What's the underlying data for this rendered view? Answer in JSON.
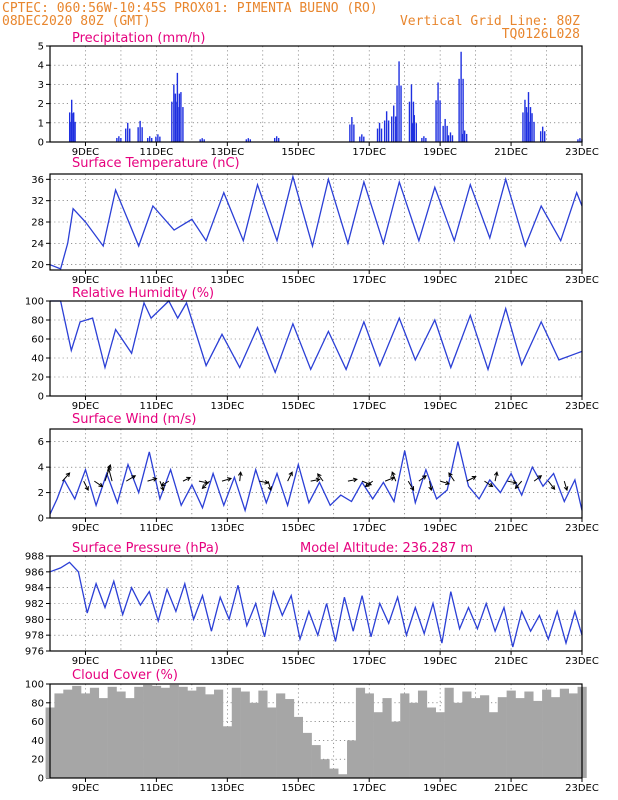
{
  "header": {
    "line1_left": "CPTEC:  060:56W-10:45S  PROX01: PIMENTA BUENO (RO)",
    "line2_left": "08DEC2020 80Z (GMT)",
    "line2_right": "Vertical Grid Line: 80Z",
    "line3_right": "TQ0126L028"
  },
  "colors": {
    "header": "#e8862e",
    "title": "#e6007e",
    "series_line": "#2b3fd6",
    "precip_bar": "#1e2fe0",
    "cloud_fill": "#a6a6a6"
  },
  "chart_data": [
    {
      "type": "bar",
      "title": "Precipitation (mm/h)",
      "ylim": [
        0,
        5
      ],
      "yticks": [
        0,
        1,
        2,
        3,
        4,
        5
      ],
      "x_date_ticks": [
        "9DEC",
        "11DEC",
        "13DEC",
        "15DEC",
        "17DEC",
        "19DEC",
        "21DEC",
        "23DEC"
      ],
      "events": [
        {
          "day": 8.62,
          "value": 2.2
        },
        {
          "day": 8.66,
          "value": 1.5
        },
        {
          "day": 9.95,
          "value": 0.3
        },
        {
          "day": 10.2,
          "value": 1.0
        },
        {
          "day": 10.55,
          "value": 1.1
        },
        {
          "day": 10.82,
          "value": 0.3
        },
        {
          "day": 11.05,
          "value": 0.4
        },
        {
          "day": 11.5,
          "value": 3.0
        },
        {
          "day": 11.6,
          "value": 3.6
        },
        {
          "day": 11.7,
          "value": 2.6
        },
        {
          "day": 12.3,
          "value": 0.2
        },
        {
          "day": 13.6,
          "value": 0.2
        },
        {
          "day": 14.4,
          "value": 0.3
        },
        {
          "day": 16.52,
          "value": 1.3
        },
        {
          "day": 16.8,
          "value": 0.4
        },
        {
          "day": 17.3,
          "value": 1.0
        },
        {
          "day": 17.5,
          "value": 1.6
        },
        {
          "day": 17.7,
          "value": 1.9
        },
        {
          "day": 17.85,
          "value": 4.2
        },
        {
          "day": 18.2,
          "value": 3.0
        },
        {
          "day": 18.28,
          "value": 1.4
        },
        {
          "day": 18.55,
          "value": 0.3
        },
        {
          "day": 18.95,
          "value": 3.1
        },
        {
          "day": 19.15,
          "value": 1.2
        },
        {
          "day": 19.3,
          "value": 0.5
        },
        {
          "day": 19.6,
          "value": 4.7
        },
        {
          "day": 19.7,
          "value": 0.6
        },
        {
          "day": 21.4,
          "value": 2.2
        },
        {
          "day": 21.5,
          "value": 2.6
        },
        {
          "day": 21.6,
          "value": 1.5
        },
        {
          "day": 21.9,
          "value": 0.8
        },
        {
          "day": 22.95,
          "value": 0.2
        }
      ]
    },
    {
      "type": "line",
      "title": "Surface Temperature (nC)",
      "ylim": [
        19,
        37
      ],
      "yticks": [
        20,
        24,
        28,
        32,
        36
      ],
      "x_date_ticks": [
        "9DEC",
        "11DEC",
        "13DEC",
        "15DEC",
        "17DEC",
        "19DEC",
        "21DEC",
        "23DEC"
      ],
      "series": [
        {
          "x": [
            8.0,
            8.3,
            8.5,
            8.65,
            9.0,
            9.5,
            9.85,
            10.5,
            10.9,
            11.5,
            12.0,
            12.4,
            12.9,
            13.45,
            13.85,
            14.4,
            14.85,
            15.4,
            15.85,
            16.4,
            16.85,
            17.4,
            17.85,
            18.4,
            18.85,
            19.4,
            19.85,
            20.4,
            20.85,
            21.4,
            21.85,
            22.4,
            22.85,
            23.0
          ],
          "y": [
            20.0,
            19.2,
            24.0,
            30.5,
            28.0,
            23.5,
            34.0,
            23.5,
            31.0,
            26.5,
            28.5,
            24.5,
            33.5,
            24.5,
            35.0,
            24.5,
            36.5,
            23.5,
            36.0,
            24.0,
            35.5,
            24.0,
            35.5,
            24.5,
            34.5,
            24.5,
            35.0,
            25.0,
            36.0,
            23.5,
            31.0,
            24.5,
            33.5,
            31.0
          ]
        }
      ]
    },
    {
      "type": "line",
      "title": "Relative Humidity (%)",
      "ylim": [
        0,
        100
      ],
      "yticks": [
        0,
        20,
        40,
        60,
        80,
        100
      ],
      "x_date_ticks": [
        "9DEC",
        "11DEC",
        "13DEC",
        "15DEC",
        "17DEC",
        "19DEC",
        "21DEC",
        "23DEC"
      ],
      "series": [
        {
          "x": [
            8.0,
            8.3,
            8.6,
            8.85,
            9.2,
            9.55,
            9.85,
            10.3,
            10.65,
            10.85,
            11.35,
            11.6,
            11.85,
            12.4,
            12.85,
            13.35,
            13.85,
            14.35,
            14.85,
            15.35,
            15.85,
            16.35,
            16.85,
            17.3,
            17.85,
            18.3,
            18.85,
            19.3,
            19.85,
            20.35,
            20.85,
            21.3,
            21.85,
            22.35,
            22.85,
            23.0
          ],
          "y": [
            100,
            100,
            48,
            78,
            82,
            30,
            70,
            45,
            98,
            82,
            100,
            82,
            98,
            32,
            65,
            30,
            72,
            25,
            76,
            28,
            68,
            28,
            78,
            32,
            82,
            38,
            80,
            30,
            85,
            28,
            92,
            33,
            78,
            38,
            45,
            47
          ]
        }
      ]
    },
    {
      "type": "line",
      "title": "Surface Wind (m/s)",
      "ylim": [
        0,
        7
      ],
      "yticks": [
        0,
        2,
        4,
        6
      ],
      "x_date_ticks": [
        "9DEC",
        "11DEC",
        "13DEC",
        "15DEC",
        "17DEC",
        "19DEC",
        "21DEC",
        "23DEC"
      ],
      "series": [
        {
          "x": [
            8.0,
            8.2,
            8.4,
            8.7,
            9.0,
            9.3,
            9.6,
            9.9,
            10.2,
            10.5,
            10.8,
            11.1,
            11.4,
            11.7,
            12.0,
            12.3,
            12.6,
            12.9,
            13.2,
            13.5,
            13.8,
            14.1,
            14.4,
            14.7,
            15.0,
            15.3,
            15.6,
            15.9,
            16.2,
            16.5,
            16.8,
            17.1,
            17.4,
            17.7,
            18.0,
            18.3,
            18.6,
            18.9,
            19.2,
            19.5,
            19.8,
            20.1,
            20.4,
            20.7,
            21.0,
            21.3,
            21.6,
            21.9,
            22.2,
            22.5,
            22.8,
            23.0
          ],
          "y": [
            0.3,
            1.5,
            3.0,
            1.5,
            3.8,
            1.0,
            3.5,
            1.2,
            4.2,
            2.0,
            5.2,
            1.5,
            3.8,
            1.0,
            2.6,
            0.8,
            3.5,
            1.0,
            3.2,
            0.6,
            3.8,
            1.2,
            3.5,
            1.0,
            4.2,
            1.2,
            2.8,
            1.0,
            1.8,
            1.3,
            2.8,
            1.5,
            2.8,
            1.3,
            5.3,
            1.2,
            3.8,
            1.5,
            2.2,
            6.0,
            2.5,
            1.5,
            3.0,
            2.0,
            3.5,
            1.8,
            4.0,
            2.5,
            3.5,
            1.3,
            3.0,
            0.6
          ]
        }
      ],
      "vectors": [
        {
          "day": 8.35,
          "u": 0.8,
          "v": 0.9
        },
        {
          "day": 8.95,
          "u": 0.5,
          "v": -1.0
        },
        {
          "day": 9.25,
          "u": 0.9,
          "v": -0.6
        },
        {
          "day": 9.55,
          "u": 0.6,
          "v": 1.8
        },
        {
          "day": 9.75,
          "u": -0.4,
          "v": 1.5
        },
        {
          "day": 10.15,
          "u": 1.0,
          "v": 0.6
        },
        {
          "day": 10.75,
          "u": 1.0,
          "v": 0.3
        },
        {
          "day": 11.1,
          "u": 0.4,
          "v": -1.0
        },
        {
          "day": 11.35,
          "u": -0.8,
          "v": -0.5
        },
        {
          "day": 11.75,
          "u": 0.8,
          "v": 0.4
        },
        {
          "day": 12.2,
          "u": 1.0,
          "v": -0.2
        },
        {
          "day": 12.5,
          "u": -0.8,
          "v": -0.8
        },
        {
          "day": 12.85,
          "u": 1.0,
          "v": 0.3
        },
        {
          "day": 13.35,
          "u": 0.1,
          "v": 1.0
        },
        {
          "day": 13.9,
          "u": 1.0,
          "v": -0.2
        },
        {
          "day": 14.15,
          "u": 0.3,
          "v": -1.0
        },
        {
          "day": 14.7,
          "u": 0.5,
          "v": 1.0
        },
        {
          "day": 15.35,
          "u": 1.0,
          "v": 0.2
        },
        {
          "day": 15.7,
          "u": -0.6,
          "v": 0.8
        },
        {
          "day": 16.4,
          "u": 1.0,
          "v": 0.2
        },
        {
          "day": 16.8,
          "u": 1.0,
          "v": -0.4
        },
        {
          "day": 17.1,
          "u": -0.8,
          "v": -0.6
        },
        {
          "day": 17.45,
          "u": 1.0,
          "v": 0.4
        },
        {
          "day": 17.75,
          "u": -0.4,
          "v": 1.0
        },
        {
          "day": 18.1,
          "u": 0.6,
          "v": -1.0
        },
        {
          "day": 18.4,
          "u": 0.8,
          "v": 0.6
        },
        {
          "day": 18.7,
          "u": 0.2,
          "v": -1.0
        },
        {
          "day": 19.0,
          "u": 1.0,
          "v": -0.3
        },
        {
          "day": 19.4,
          "u": -0.6,
          "v": 0.9
        },
        {
          "day": 19.75,
          "u": 1.0,
          "v": 0.5
        },
        {
          "day": 20.25,
          "u": 0.9,
          "v": -0.6
        },
        {
          "day": 20.55,
          "u": 0.2,
          "v": 1.0
        },
        {
          "day": 20.9,
          "u": 1.0,
          "v": -0.2
        },
        {
          "day": 21.3,
          "u": -0.7,
          "v": -0.8
        },
        {
          "day": 21.65,
          "u": 0.8,
          "v": 0.6
        },
        {
          "day": 22.05,
          "u": 0.7,
          "v": -0.9
        },
        {
          "day": 22.5,
          "u": 0.3,
          "v": -1.0
        }
      ]
    },
    {
      "type": "line",
      "title": "Surface Pressure (hPa)",
      "subtitle": "Model Altitude: 236.287 m",
      "ylim": [
        976,
        988
      ],
      "yticks": [
        976,
        978,
        980,
        982,
        984,
        986,
        988
      ],
      "x_date_ticks": [
        "9DEC",
        "11DEC",
        "13DEC",
        "15DEC",
        "17DEC",
        "19DEC",
        "21DEC",
        "23DEC"
      ],
      "series": [
        {
          "x": [
            8.0,
            8.3,
            8.55,
            8.8,
            9.05,
            9.3,
            9.55,
            9.8,
            10.05,
            10.3,
            10.55,
            10.8,
            11.05,
            11.3,
            11.55,
            11.8,
            12.05,
            12.3,
            12.55,
            12.8,
            13.05,
            13.3,
            13.55,
            13.8,
            14.05,
            14.3,
            14.55,
            14.8,
            15.05,
            15.3,
            15.55,
            15.8,
            16.05,
            16.3,
            16.55,
            16.8,
            17.05,
            17.3,
            17.55,
            17.8,
            18.05,
            18.3,
            18.55,
            18.8,
            19.05,
            19.3,
            19.55,
            19.8,
            20.05,
            20.3,
            20.55,
            20.8,
            21.05,
            21.3,
            21.55,
            21.8,
            22.05,
            22.3,
            22.55,
            22.8,
            23.0
          ],
          "y": [
            986.0,
            986.5,
            987.2,
            986.0,
            980.8,
            984.5,
            981.5,
            984.8,
            980.6,
            984.0,
            981.8,
            983.5,
            979.8,
            983.8,
            981.0,
            984.5,
            980.0,
            983.0,
            978.5,
            982.8,
            980.0,
            984.3,
            979.2,
            982.0,
            977.8,
            983.5,
            980.5,
            983.0,
            977.5,
            981.0,
            978.0,
            982.0,
            977.2,
            982.8,
            978.5,
            983.0,
            977.8,
            982.0,
            979.5,
            982.8,
            978.0,
            981.5,
            978.2,
            982.0,
            977.0,
            983.5,
            978.8,
            981.5,
            978.8,
            982.0,
            978.5,
            981.5,
            976.5,
            981.0,
            978.5,
            980.5,
            977.5,
            981.0,
            977.0,
            981.0,
            978.0
          ]
        }
      ]
    },
    {
      "type": "area",
      "title": "Cloud Cover (%)",
      "ylim": [
        0,
        100
      ],
      "yticks": [
        0,
        20,
        40,
        60,
        80,
        100
      ],
      "x_date_ticks": [
        "9DEC",
        "11DEC",
        "13DEC",
        "15DEC",
        "17DEC",
        "19DEC",
        "21DEC",
        "23DEC"
      ],
      "series": [
        {
          "x": [
            8.0,
            8.25,
            8.5,
            8.75,
            9.0,
            9.25,
            9.5,
            9.75,
            10.0,
            10.25,
            10.5,
            10.75,
            11.0,
            11.25,
            11.5,
            11.75,
            12.0,
            12.25,
            12.5,
            12.75,
            13.0,
            13.25,
            13.5,
            13.75,
            14.0,
            14.25,
            14.5,
            14.75,
            15.0,
            15.25,
            15.5,
            15.75,
            16.0,
            16.25,
            16.5,
            16.75,
            17.0,
            17.25,
            17.5,
            17.75,
            18.0,
            18.25,
            18.5,
            18.75,
            19.0,
            19.25,
            19.5,
            19.75,
            20.0,
            20.25,
            20.5,
            20.75,
            21.0,
            21.25,
            21.5,
            21.75,
            22.0,
            22.25,
            22.5,
            22.75,
            23.0
          ],
          "y": [
            75,
            90,
            94,
            98,
            90,
            96,
            85,
            97,
            92,
            85,
            97,
            99,
            98,
            96,
            99,
            97,
            93,
            97,
            89,
            94,
            55,
            96,
            92,
            80,
            93,
            75,
            90,
            84,
            65,
            48,
            35,
            20,
            10,
            4,
            40,
            96,
            90,
            70,
            85,
            60,
            90,
            80,
            93,
            75,
            70,
            96,
            80,
            92,
            85,
            88,
            70,
            86,
            93,
            85,
            92,
            82,
            94,
            86,
            95,
            90,
            97
          ]
        }
      ]
    }
  ]
}
